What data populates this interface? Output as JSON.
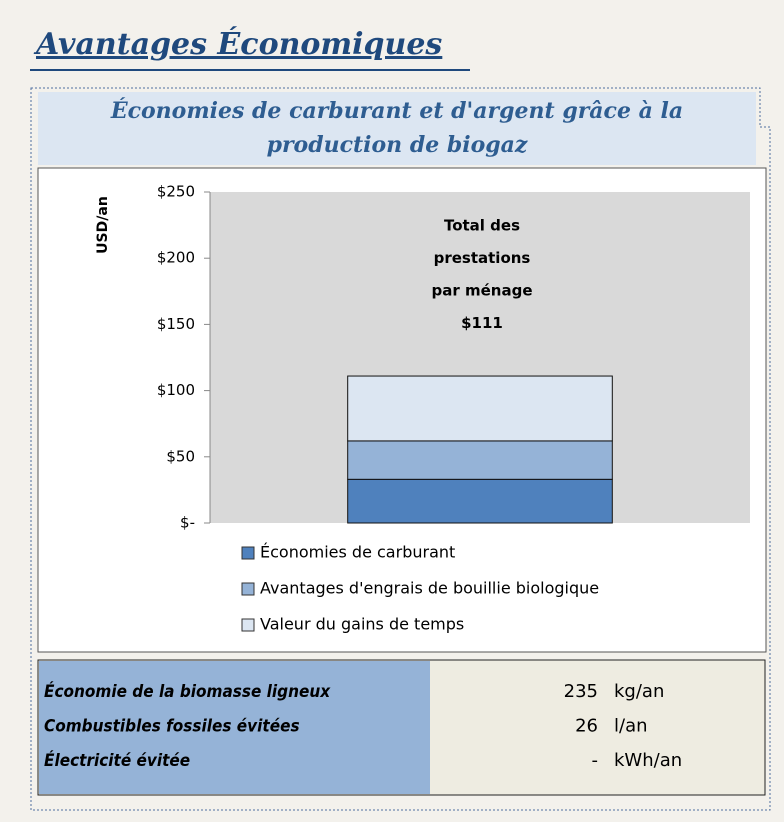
{
  "page_title": "Avantages Économiques",
  "chart_data": {
    "type": "bar",
    "title_lines": [
      "Économies de carburant et d'argent grâce à la",
      "production de biogaz"
    ],
    "y_label": "USD/an",
    "annotation": [
      "Total des",
      "prestations",
      "par ménage",
      "$111"
    ],
    "categories": [
      null
    ],
    "stacked": true,
    "series": [
      {
        "name": "Économies de carburant",
        "color": "#4f81bd",
        "values": [
          33
        ]
      },
      {
        "name": "Avantages d'engrais de bouillie biologique",
        "color": "#95b3d7",
        "values": [
          29
        ]
      },
      {
        "name": "Valeur du gains de temps",
        "color": "#dce6f2",
        "values": [
          49
        ]
      }
    ],
    "ylim": [
      0,
      250
    ],
    "yticks": [
      {
        "value": 0,
        "label": "$-"
      },
      {
        "value": 50,
        "label": "$50"
      },
      {
        "value": 100,
        "label": "$100"
      },
      {
        "value": 150,
        "label": "$150"
      },
      {
        "value": 200,
        "label": "$200"
      },
      {
        "value": 250,
        "label": "$250"
      }
    ],
    "grid": false,
    "legend": "bottom"
  },
  "table": {
    "rows": [
      [
        "Économie de la biomasse ligneux",
        "235",
        "kg/an"
      ],
      [
        "Combustibles fossiles évitées",
        "26",
        "l/an"
      ],
      [
        "Électricité évitée",
        "-",
        "kWh/an"
      ]
    ]
  }
}
